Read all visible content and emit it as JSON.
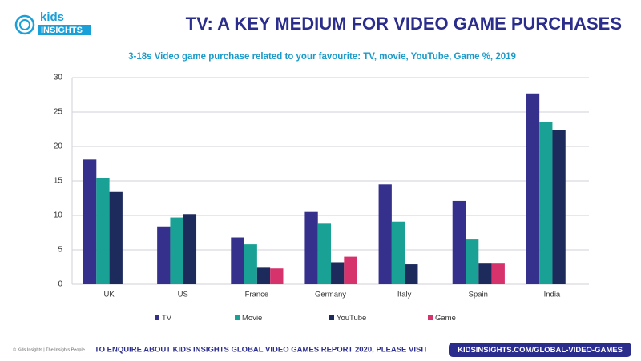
{
  "header": {
    "logo_top": "kids",
    "logo_bottom": "INSIGHTS"
  },
  "chart_data": {
    "type": "bar",
    "title": "TV: A KEY MEDIUM FOR VIDEO GAME PURCHASES",
    "subtitle": "3-18s Video game purchase related to your favourite: TV, movie, YouTube, Game %, 2019",
    "categories": [
      "UK",
      "US",
      "France",
      "Germany",
      "Italy",
      "Spain",
      "India"
    ],
    "series": [
      {
        "name": "TV",
        "color": "#34308b",
        "values": [
          18.1,
          8.4,
          6.8,
          10.5,
          14.5,
          12.1,
          27.7
        ]
      },
      {
        "name": "Movie",
        "color": "#1aa195",
        "values": [
          15.4,
          9.7,
          5.8,
          8.8,
          9.1,
          6.5,
          23.5
        ]
      },
      {
        "name": "YouTube",
        "color": "#1c2a5c",
        "values": [
          13.4,
          10.2,
          2.4,
          3.2,
          2.9,
          3.0,
          22.4
        ]
      },
      {
        "name": "Game",
        "color": "#d6336c",
        "values": [
          null,
          null,
          2.3,
          4.0,
          null,
          3.0,
          null
        ]
      }
    ],
    "ylim": [
      0,
      30
    ],
    "yticks": [
      0,
      5,
      10,
      15,
      20,
      25,
      30
    ],
    "grid": true
  },
  "footer": {
    "copyright": "© Kids Insights | The Insights People",
    "enquire": "TO ENQUIRE ABOUT KIDS INSIGHTS GLOBAL VIDEO GAMES REPORT 2020, PLEASE VISIT",
    "link": "KIDSINSIGHTS.COM/GLOBAL-VIDEO-GAMES"
  }
}
